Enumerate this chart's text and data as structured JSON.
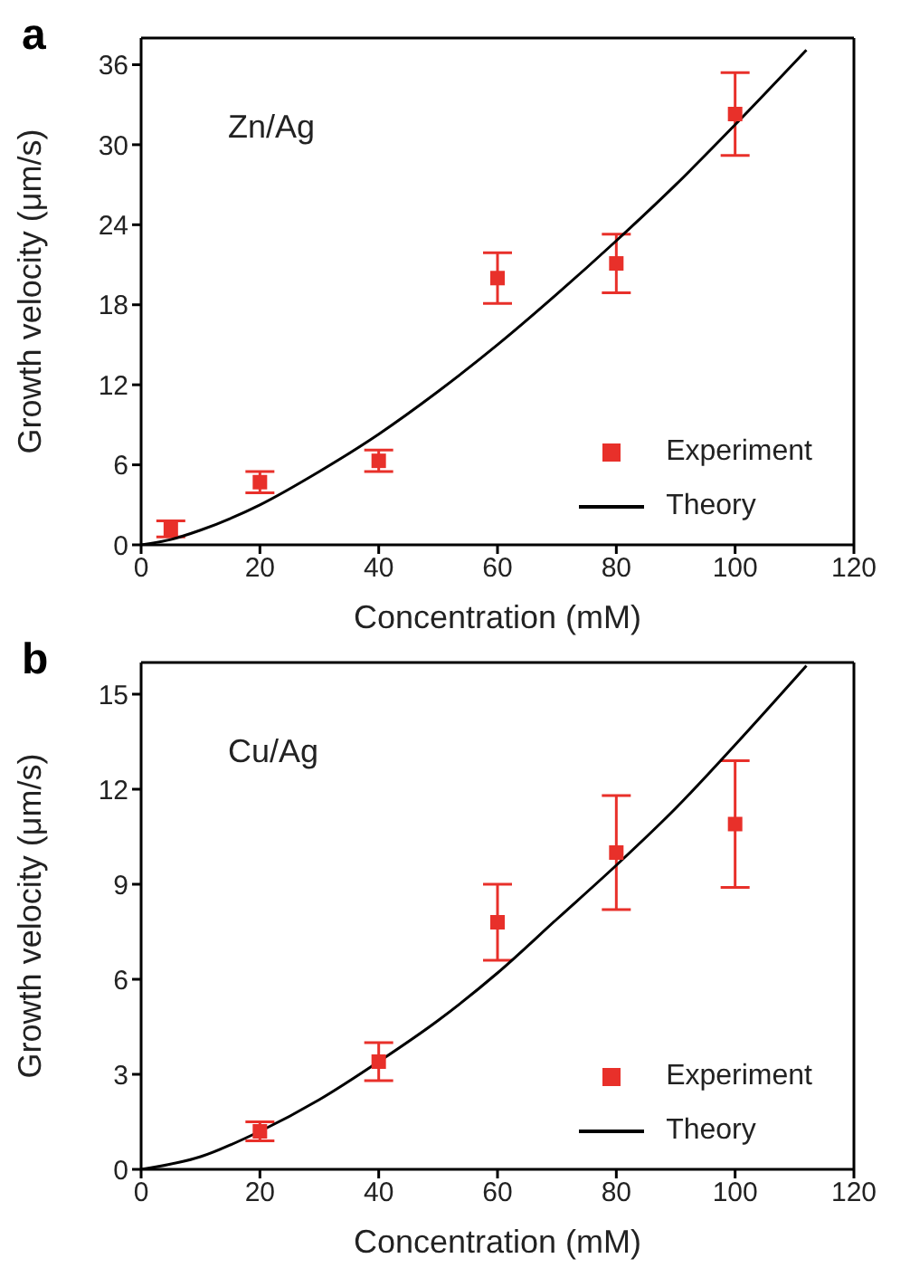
{
  "chart_data": [
    {
      "type": "scatter",
      "xlabel": "Concentration (mM)",
      "ylabel": "Growth velocity (μm/s)",
      "annotations": [
        "a",
        "Zn/Ag"
      ],
      "xlim": [
        0,
        120
      ],
      "xticks": [
        0,
        20,
        40,
        60,
        80,
        100,
        120
      ],
      "ylim": [
        0,
        38
      ],
      "yticks": [
        0,
        6,
        12,
        18,
        24,
        30,
        36
      ],
      "legend": "bottom right",
      "series": [
        {
          "name": "Experiment",
          "marker": "square",
          "color": "#e8302a",
          "x": [
            5,
            20,
            40,
            60,
            80,
            100
          ],
          "values": [
            1.2,
            4.7,
            6.3,
            20.0,
            21.1,
            32.3
          ],
          "errors": [
            0.6,
            0.8,
            0.8,
            1.9,
            2.2,
            3.1
          ]
        },
        {
          "name": "Theory",
          "type": "line",
          "marker": "none",
          "color": "#000000",
          "x": [
            0,
            5,
            10,
            20,
            30,
            40,
            50,
            60,
            70,
            80,
            90,
            100,
            112
          ],
          "values": [
            0,
            0.4,
            1.1,
            3.0,
            5.5,
            8.3,
            11.5,
            15.0,
            18.8,
            22.8,
            27.0,
            31.5,
            37.1
          ]
        }
      ]
    },
    {
      "type": "scatter",
      "xlabel": "Concentration (mM)",
      "ylabel": "Growth velocity (μm/s)",
      "annotations": [
        "b",
        "Cu/Ag"
      ],
      "xlim": [
        0,
        120
      ],
      "xticks": [
        0,
        20,
        40,
        60,
        80,
        100,
        120
      ],
      "ylim": [
        0,
        16
      ],
      "yticks": [
        0,
        3,
        6,
        9,
        12,
        15
      ],
      "legend": "bottom right",
      "series": [
        {
          "name": "Experiment",
          "marker": "square",
          "color": "#e8302a",
          "x": [
            20,
            40,
            60,
            80,
            100
          ],
          "values": [
            1.2,
            3.4,
            7.8,
            10.0,
            10.9
          ],
          "errors": [
            0.3,
            0.6,
            1.2,
            1.8,
            2.0
          ]
        },
        {
          "name": "Theory",
          "type": "line",
          "marker": "none",
          "color": "#000000",
          "x": [
            0,
            10,
            20,
            30,
            40,
            50,
            60,
            70,
            80,
            90,
            100,
            112
          ],
          "values": [
            0,
            0.4,
            1.2,
            2.2,
            3.4,
            4.7,
            6.2,
            7.9,
            9.6,
            11.4,
            13.4,
            15.9
          ]
        }
      ]
    }
  ]
}
